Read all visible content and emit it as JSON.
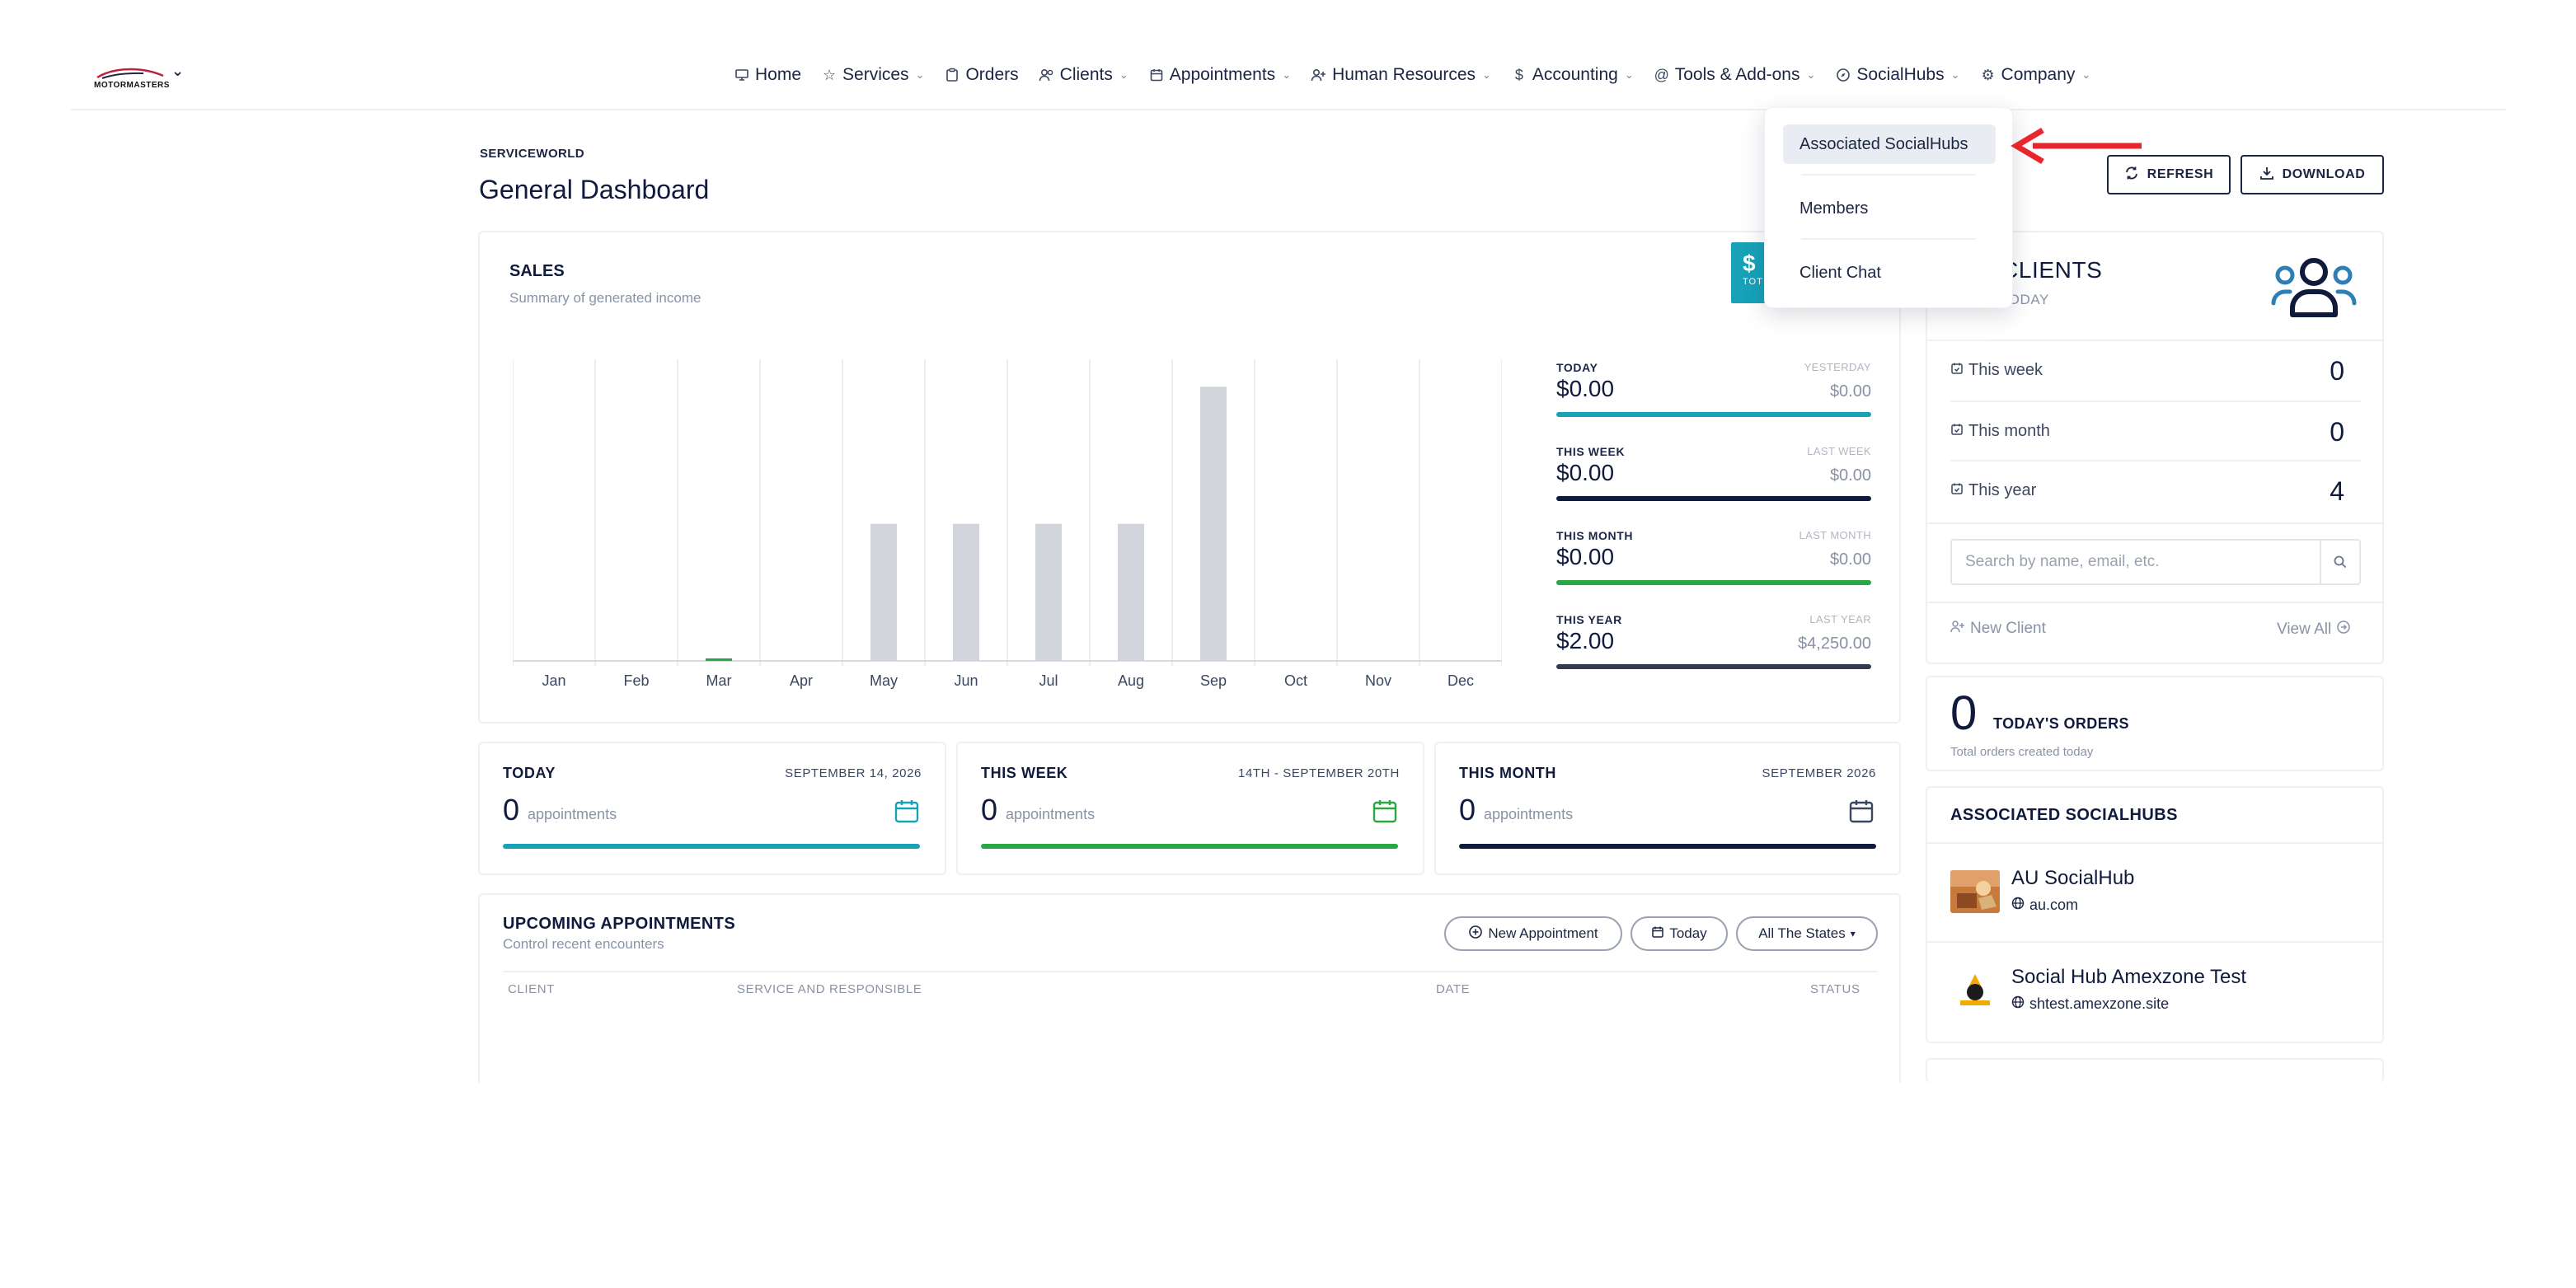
{
  "brand": {
    "logo_text": "MOTORMASTERS"
  },
  "nav": {
    "items": [
      {
        "label": "Home",
        "icon": "monitor-icon",
        "has_chevron": false
      },
      {
        "label": "Services",
        "icon": "star-icon",
        "has_chevron": true
      },
      {
        "label": "Orders",
        "icon": "clipboard-icon",
        "has_chevron": false
      },
      {
        "label": "Clients",
        "icon": "users-icon",
        "has_chevron": true
      },
      {
        "label": "Appointments",
        "icon": "calendar-icon",
        "has_chevron": true
      },
      {
        "label": "Human Resources",
        "icon": "user-plus-icon",
        "has_chevron": true
      },
      {
        "label": "Accounting",
        "icon": "dollar-icon",
        "has_chevron": true
      },
      {
        "label": "Tools & Add-ons",
        "icon": "at-icon",
        "has_chevron": true
      },
      {
        "label": "SocialHubs",
        "icon": "compass-icon",
        "has_chevron": true
      },
      {
        "label": "Company",
        "icon": "gear-icon",
        "has_chevron": true
      }
    ]
  },
  "socialhubs_menu": {
    "items": [
      "Associated SocialHubs",
      "Members",
      "Client Chat"
    ],
    "active": "Associated SocialHubs"
  },
  "header": {
    "eyebrow": "SERVICEWORLD",
    "title": "General Dashboard",
    "refresh_label": "REFRESH",
    "download_label": "DOWNLOAD"
  },
  "sales": {
    "title": "SALES",
    "subtitle": "Summary of generated income",
    "badge_symbol": "$",
    "badge_label": "TOT",
    "stats": [
      {
        "label": "TODAY",
        "compare_label": "YESTERDAY",
        "value": "$0.00",
        "compare_value": "$0.00",
        "color": "#17a2b8"
      },
      {
        "label": "THIS WEEK",
        "compare_label": "LAST WEEK",
        "value": "$0.00",
        "compare_value": "$0.00",
        "color": "#0f1a3c"
      },
      {
        "label": "THIS MONTH",
        "compare_label": "LAST MONTH",
        "value": "$0.00",
        "compare_value": "$0.00",
        "color": "#28a745"
      },
      {
        "label": "THIS YEAR",
        "compare_label": "LAST YEAR",
        "value": "$2.00",
        "compare_value": "$4,250.00",
        "color": "#343a4f"
      }
    ]
  },
  "chart_data": {
    "type": "bar",
    "categories": [
      "Jan",
      "Feb",
      "Mar",
      "Apr",
      "May",
      "Jun",
      "Jul",
      "Aug",
      "Sep",
      "Oct",
      "Nov",
      "Dec"
    ],
    "series": [
      {
        "values": [
          0,
          0,
          2,
          0,
          500,
          500,
          500,
          500,
          1000,
          0,
          0,
          0
        ],
        "colors": [
          "#d1d5db",
          "#d1d5db",
          "#28a745",
          "#d1d5db",
          "#d1d5db",
          "#d1d5db",
          "#d1d5db",
          "#d1d5db",
          "#d1d5db",
          "#d1d5db",
          "#d1d5db",
          "#d1d5db"
        ]
      }
    ],
    "ylim": [
      0,
      1100
    ],
    "grid": "vertical",
    "title": "",
    "xlabel": "",
    "ylabel": ""
  },
  "appointments_summary": [
    {
      "label": "TODAY",
      "date": "SEPTEMBER 14, 2026",
      "count": "0",
      "unit": "appointments",
      "color": "#17a2b8",
      "icon_color": "#17a2b8"
    },
    {
      "label": "THIS WEEK",
      "date": "14TH - SEPTEMBER 20TH",
      "count": "0",
      "unit": "appointments",
      "color": "#28a745",
      "icon_color": "#28a745"
    },
    {
      "label": "THIS MONTH",
      "date": "SEPTEMBER 2026",
      "count": "0",
      "unit": "appointments",
      "color": "#0f1a3c",
      "icon_color": "#3b4660"
    }
  ],
  "upcoming": {
    "title": "UPCOMING APPOINTMENTS",
    "subtitle": "Control recent encounters",
    "new_label": "New Appointment",
    "today_label": "Today",
    "states_label": "All The States",
    "columns": [
      "CLIENT",
      "SERVICE AND RESPONSIBLE",
      "DATE",
      "STATUS"
    ]
  },
  "clients": {
    "title": "CLIENTS",
    "subtitle": "TODAY",
    "rows": [
      {
        "label": "This week",
        "value": "0"
      },
      {
        "label": "This month",
        "value": "0"
      },
      {
        "label": "This year",
        "value": "4"
      }
    ],
    "search_placeholder": "Search by name, email, etc.",
    "new_label": "New Client",
    "view_all_label": "View All"
  },
  "orders": {
    "count": "0",
    "label": "TODAY'S ORDERS",
    "subtitle": "Total orders created today"
  },
  "socialhubs": {
    "title": "ASSOCIATED SOCIALHUBS",
    "items": [
      {
        "name": "AU SocialHub",
        "url": "au.com"
      },
      {
        "name": "Social Hub Amexzone Test",
        "url": "shtest.amexzone.site"
      }
    ]
  }
}
